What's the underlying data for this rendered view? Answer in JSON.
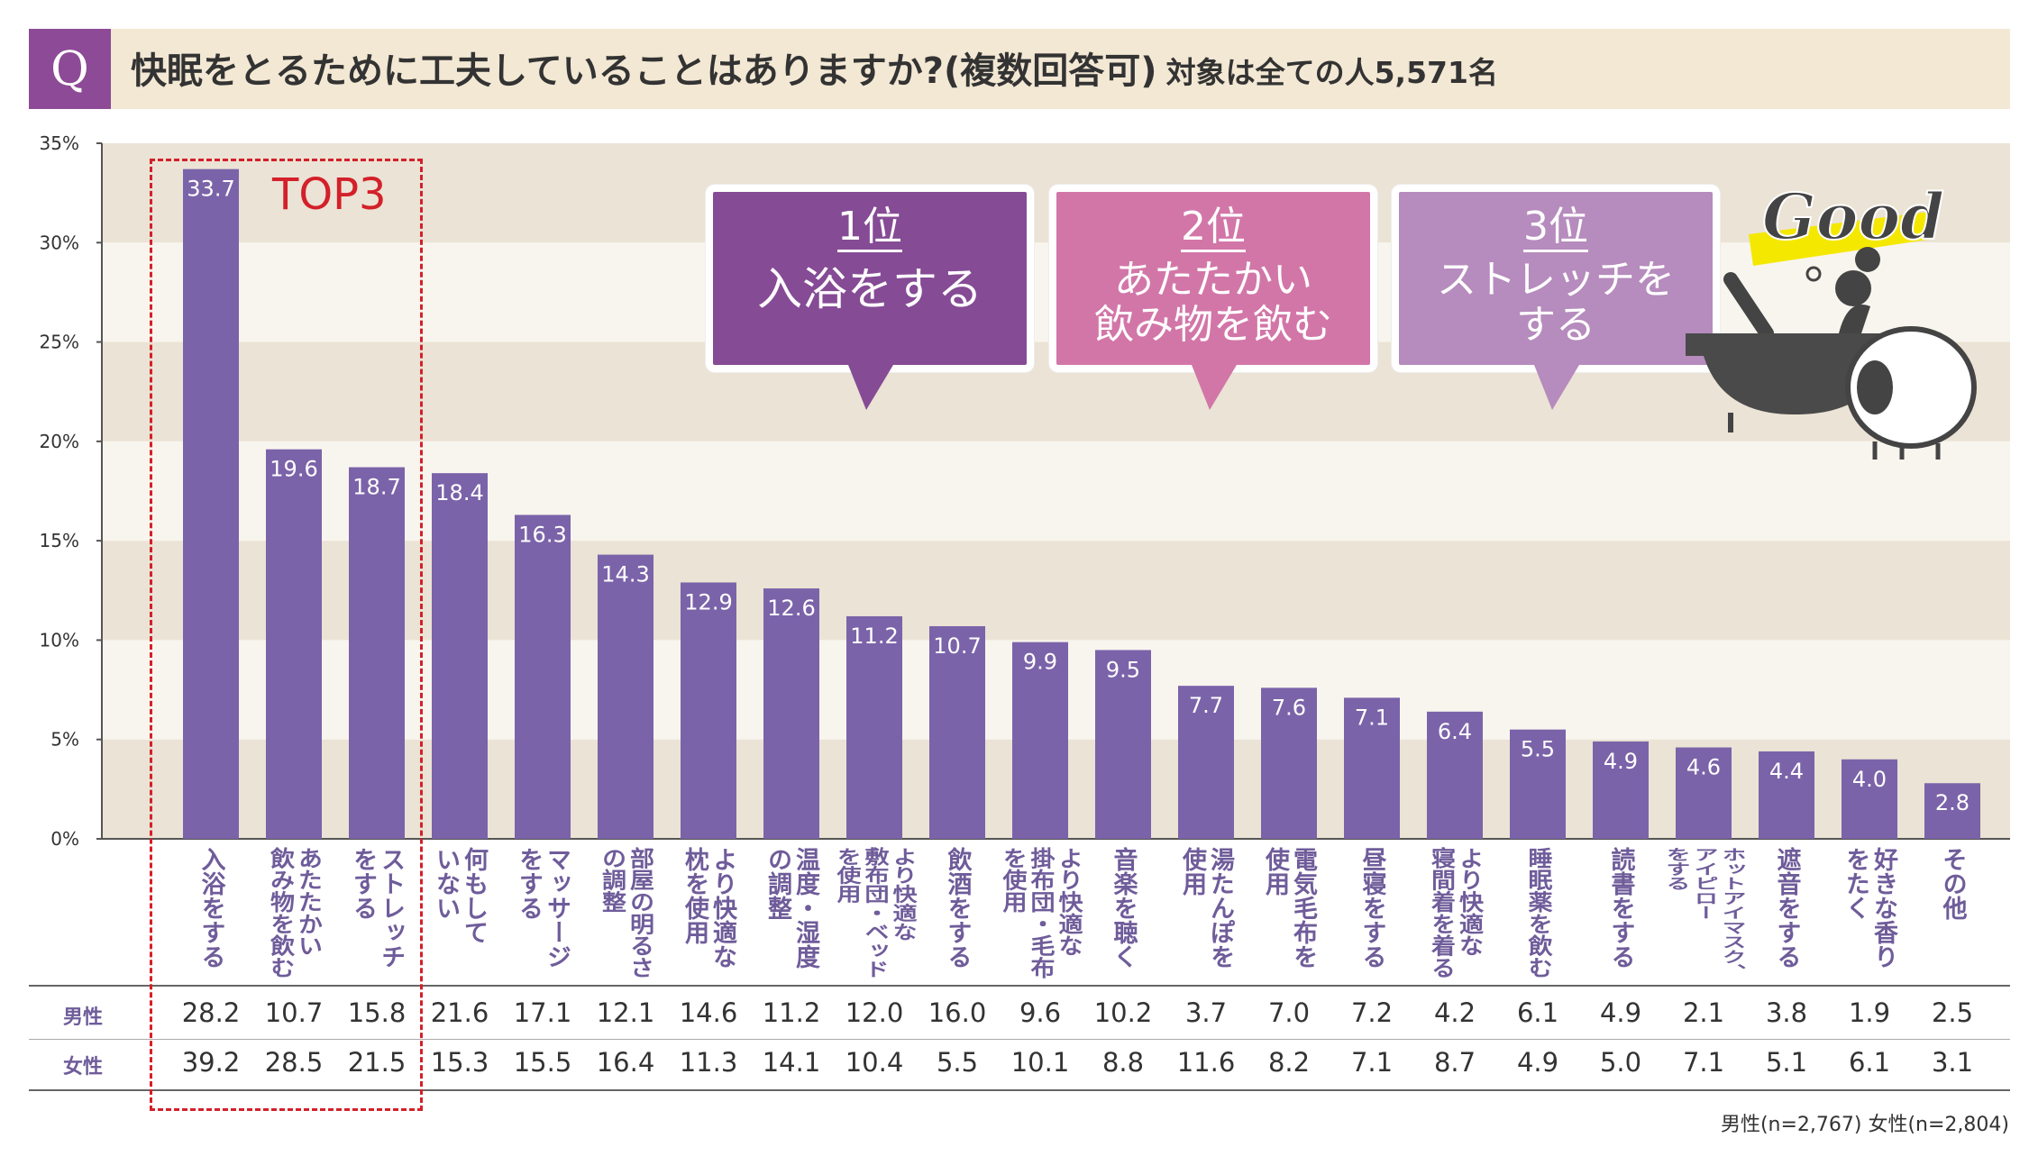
{
  "header": {
    "q_label": "Q",
    "title": "快眠をとるために工夫していることはありますか?(複数回答可)",
    "subtitle": "対象は全ての人5,571名"
  },
  "highlight": {
    "label": "TOP3"
  },
  "callouts": [
    {
      "rank": "1位",
      "text": "入浴をする",
      "color": "#864b95"
    },
    {
      "rank": "2位",
      "text": "あたたかい\n飲み物を飲む",
      "color": "#d276a8"
    },
    {
      "rank": "3位",
      "text": "ストレッチを\nする",
      "color": "#b68bbd"
    }
  ],
  "illustration": {
    "text": "Good",
    "icons": [
      "bathtub-icon",
      "person-icon",
      "sheep-icon"
    ]
  },
  "chart_data": {
    "type": "bar",
    "ylim": [
      0,
      35
    ],
    "yticks": [
      "0%",
      "5%",
      "10%",
      "15%",
      "20%",
      "25%",
      "30%",
      "35%"
    ],
    "bar_color": "#7b63a9",
    "band_colors": [
      "#ebe3d5",
      "#f8f5ee"
    ],
    "categories": [
      "入浴をする",
      "あたたかい\n飲み物を飲む",
      "ストレッチ\nをする",
      "何もして\nいない",
      "マッサージ\nをする",
      "部屋の明るさ\nの調整",
      "より快適な\n枕を使用",
      "温度・湿度\nの調整",
      "より快適な\n敷布団・ベッド\nを使用",
      "飲酒をする",
      "より快適な\n掛布団・毛布\nを使用",
      "音楽を聴く",
      "湯たんぽを\n使用",
      "電気毛布を\n使用",
      "昼寝をする",
      "より快適な\n寝間着を着る",
      "睡眠薬を飲む",
      "読書をする",
      "ホットアイマスク、\nアイピロー\nをする",
      "遮音をする",
      "好きな香り\nをたく",
      "その他"
    ],
    "values": [
      33.7,
      19.6,
      18.7,
      18.4,
      16.3,
      14.3,
      12.9,
      12.6,
      11.2,
      10.7,
      9.9,
      9.5,
      7.7,
      7.6,
      7.1,
      6.4,
      5.5,
      4.9,
      4.6,
      4.4,
      4.0,
      2.8
    ],
    "table": [
      {
        "name": "男性",
        "values": [
          28.2,
          10.7,
          15.8,
          21.6,
          17.1,
          12.1,
          14.6,
          11.2,
          12.0,
          16.0,
          9.6,
          10.2,
          3.7,
          7.0,
          7.2,
          4.2,
          6.1,
          4.9,
          2.1,
          3.8,
          1.9,
          2.5
        ]
      },
      {
        "name": "女性",
        "values": [
          39.2,
          28.5,
          21.5,
          15.3,
          15.5,
          16.4,
          11.3,
          14.1,
          10.4,
          5.5,
          10.1,
          8.8,
          11.6,
          8.2,
          7.1,
          8.7,
          4.9,
          5.0,
          7.1,
          5.1,
          6.1,
          3.1
        ]
      }
    ],
    "note": "男性(n=2,767) 女性(n=2,804)"
  }
}
